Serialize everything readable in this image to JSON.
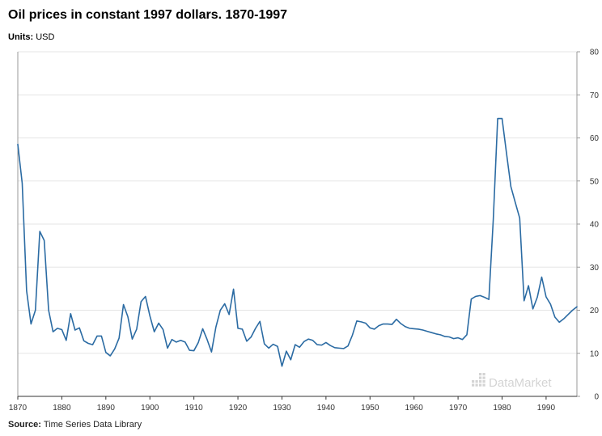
{
  "header": {
    "title": "Oil prices in constant 1997 dollars. 1870-1997",
    "units_label": "Units:",
    "units_value": "USD"
  },
  "footer": {
    "source_label": "Source:",
    "source_value": "Time Series Data Library"
  },
  "watermark": {
    "text": "DataMarket"
  },
  "colors": {
    "line": "#2b6ba3",
    "grid": "#e5e5e5",
    "axis": "#999999",
    "watermark": "#d4d4d4"
  },
  "chart_data": {
    "type": "line",
    "title": "Oil prices in constant 1997 dollars. 1870-1997",
    "xlabel": "",
    "ylabel": "",
    "xlim": [
      1870,
      1997
    ],
    "ylim": [
      0,
      80
    ],
    "x_ticks": [
      1870,
      1880,
      1890,
      1900,
      1910,
      1920,
      1930,
      1940,
      1950,
      1960,
      1970,
      1980,
      1990
    ],
    "y_ticks": [
      0,
      10,
      20,
      30,
      40,
      50,
      60,
      70,
      80
    ],
    "y_axis_side": "right",
    "grid": true,
    "legend": "none",
    "series": [
      {
        "x": [
          1870,
          1871,
          1872,
          1873,
          1874,
          1875,
          1876,
          1877,
          1878,
          1879,
          1880,
          1881,
          1882,
          1883,
          1884,
          1885,
          1886,
          1887,
          1888,
          1889,
          1890,
          1891,
          1892,
          1893,
          1894,
          1895,
          1896,
          1897,
          1898,
          1899,
          1900,
          1901,
          1902,
          1903,
          1904,
          1905,
          1906,
          1907,
          1908,
          1909,
          1910,
          1911,
          1912,
          1913,
          1914,
          1915,
          1916,
          1917,
          1918,
          1919,
          1920,
          1921,
          1922,
          1923,
          1924,
          1925,
          1926,
          1927,
          1928,
          1929,
          1930,
          1931,
          1932,
          1933,
          1934,
          1935,
          1936,
          1937,
          1938,
          1939,
          1940,
          1941,
          1942,
          1943,
          1944,
          1945,
          1946,
          1947,
          1948,
          1949,
          1950,
          1951,
          1952,
          1953,
          1954,
          1955,
          1956,
          1957,
          1958,
          1959,
          1960,
          1961,
          1962,
          1963,
          1964,
          1965,
          1966,
          1967,
          1968,
          1969,
          1970,
          1971,
          1972,
          1973,
          1974,
          1975,
          1976,
          1977,
          1978,
          1979,
          1980,
          1981,
          1982,
          1983,
          1984,
          1985,
          1986,
          1987,
          1988,
          1989,
          1990,
          1991,
          1992,
          1993,
          1994,
          1995,
          1996,
          1997
        ],
        "values": [
          58.5,
          49.5,
          24.5,
          16.8,
          20.0,
          38.3,
          36.2,
          20.0,
          15.0,
          15.8,
          15.5,
          13.0,
          19.2,
          15.4,
          15.9,
          12.9,
          12.3,
          12.0,
          14.0,
          14.0,
          10.2,
          9.4,
          11.0,
          13.5,
          21.3,
          18.5,
          13.3,
          15.6,
          22.0,
          23.2,
          18.7,
          15.0,
          17.0,
          15.5,
          11.2,
          13.2,
          12.6,
          13.0,
          12.6,
          10.7,
          10.6,
          12.5,
          15.7,
          13.2,
          10.3,
          16.1,
          20.0,
          21.5,
          19.0,
          24.9,
          15.8,
          15.6,
          12.8,
          13.8,
          15.8,
          17.4,
          12.2,
          11.2,
          12.1,
          11.6,
          7.0,
          10.5,
          8.5,
          12.0,
          11.4,
          12.7,
          13.3,
          13.0,
          12.0,
          11.9,
          12.5,
          11.8,
          11.3,
          11.2,
          11.1,
          11.7,
          14.2,
          17.5,
          17.3,
          17.0,
          15.9,
          15.6,
          16.4,
          16.8,
          16.8,
          16.7,
          17.9,
          16.9,
          16.2,
          15.8,
          15.7,
          15.6,
          15.4,
          15.1,
          14.8,
          14.5,
          14.3,
          13.9,
          13.8,
          13.4,
          13.6,
          13.2,
          14.3,
          22.6,
          23.2,
          23.4,
          23.0,
          22.5,
          41.0,
          64.5,
          64.5,
          56.5,
          48.7,
          45.0,
          41.4,
          22.2,
          25.7,
          20.3,
          23.0,
          27.7,
          23.1,
          21.4,
          18.4,
          17.2,
          18.0,
          19.0,
          20.0,
          20.8
        ]
      }
    ]
  }
}
